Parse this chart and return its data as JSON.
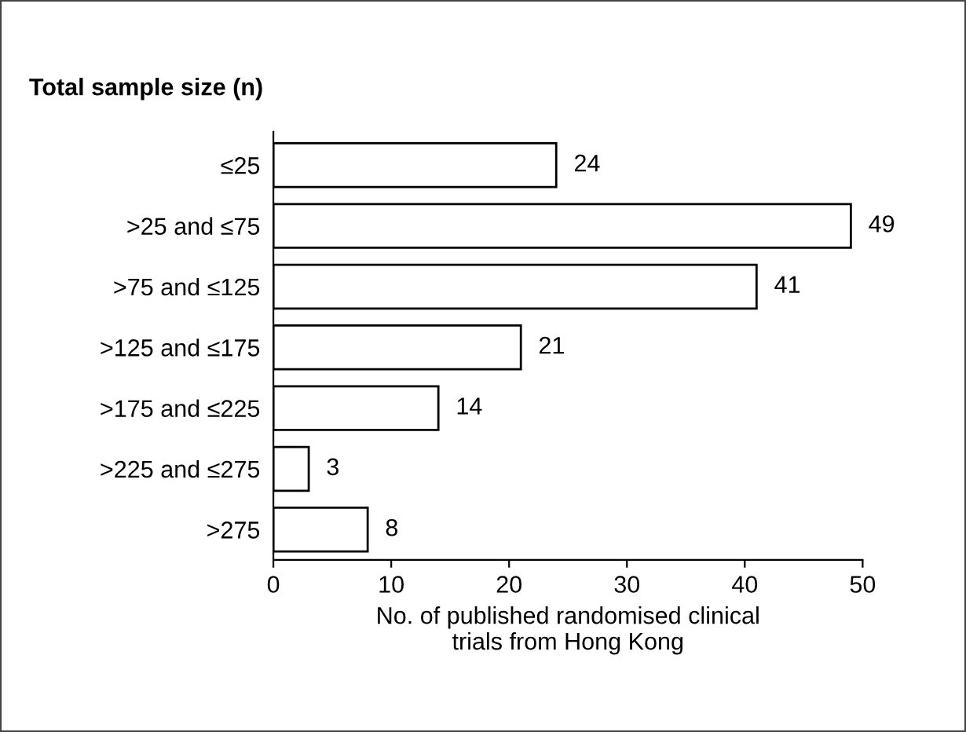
{
  "chart_data": {
    "type": "bar",
    "orientation": "horizontal",
    "title": "Total sample size (n)",
    "categories": [
      "≤25",
      ">25 and ≤75",
      ">75 and ≤125",
      ">125 and ≤175",
      ">175 and ≤225",
      ">225 and ≤275",
      ">275"
    ],
    "values": [
      24,
      49,
      41,
      21,
      14,
      3,
      8
    ],
    "color": "#ffffff",
    "xlabel": "No. of published randomised clinical\ntrials from Hong Kong",
    "xlim": [
      0,
      50
    ],
    "xticks": [
      0,
      10,
      20,
      30,
      40,
      50
    ],
    "data_labels": true,
    "grid": false
  }
}
